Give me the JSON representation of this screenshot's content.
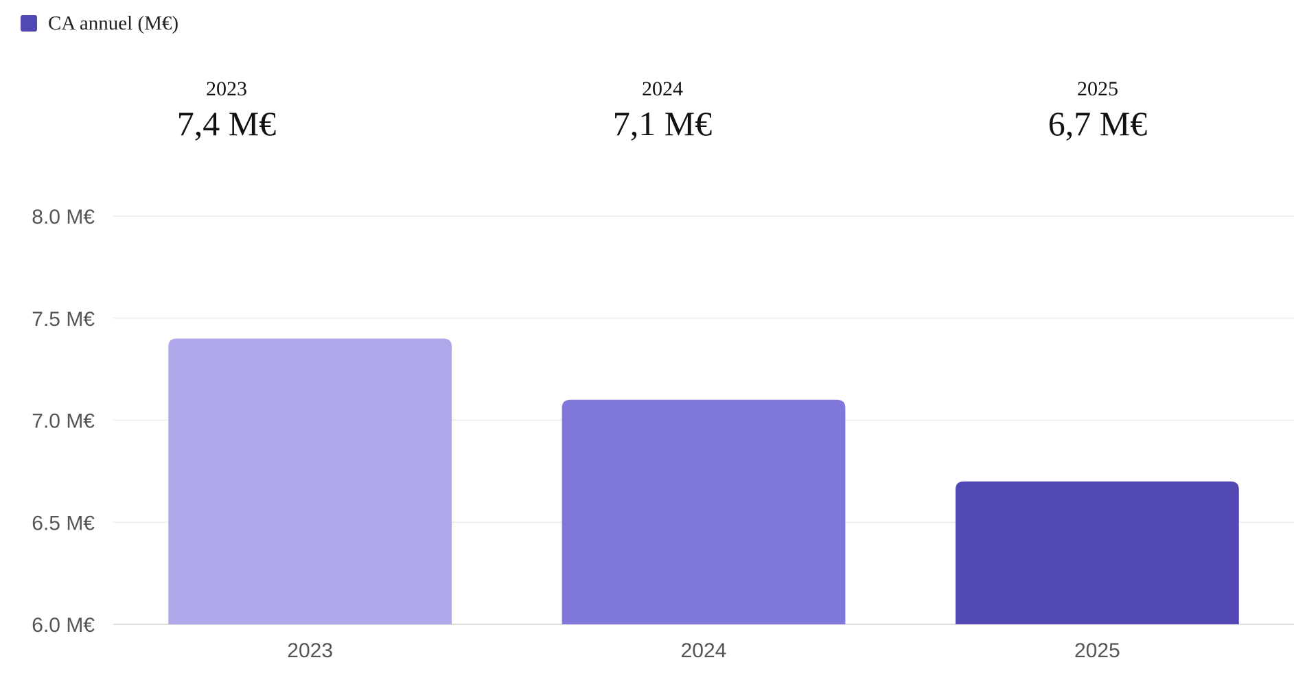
{
  "legend": {
    "label": "CA annuel (M€)",
    "color": "#5148b4"
  },
  "kpis": [
    {
      "year": "2023",
      "value": "7,4 M€"
    },
    {
      "year": "2024",
      "value": "7,1 M€"
    },
    {
      "year": "2025",
      "value": "6,7 M€"
    }
  ],
  "chart_data": {
    "type": "bar",
    "categories": [
      "2023",
      "2024",
      "2025"
    ],
    "series": [
      {
        "name": "CA annuel (M€)",
        "values": [
          7.4,
          7.1,
          6.7
        ]
      }
    ],
    "bar_colors": [
      "#aea7e9",
      "#7f78da",
      "#5148b4"
    ],
    "ylim": [
      6.0,
      8.0
    ],
    "y_ticks": [
      {
        "value": 6.0,
        "label": "6.0 M€"
      },
      {
        "value": 6.5,
        "label": "6.5 M€"
      },
      {
        "value": 7.0,
        "label": "7.0 M€"
      },
      {
        "value": 7.5,
        "label": "7.5 M€"
      },
      {
        "value": 8.0,
        "label": "8.0 M€"
      }
    ],
    "grid": true,
    "legend_position": "top-left"
  }
}
